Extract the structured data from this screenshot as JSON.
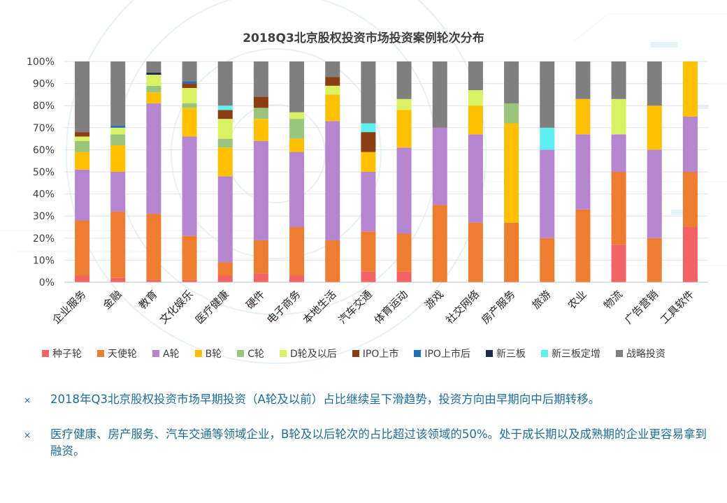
{
  "chart_data": {
    "type": "bar",
    "stacked": true,
    "title": "2018Q3北京股权投资市场投资案例轮次分布",
    "ylim": [
      0,
      100
    ],
    "ytick_labels": [
      "0%",
      "10%",
      "20%",
      "30%",
      "40%",
      "50%",
      "60%",
      "70%",
      "80%",
      "90%",
      "100%"
    ],
    "categories": [
      "企业服务",
      "金融",
      "教育",
      "文化娱乐",
      "医疗健康",
      "硬件",
      "电子商务",
      "本地生活",
      "汽车交通",
      "体育运动",
      "游戏",
      "社交网络",
      "房产服务",
      "旅游",
      "农业",
      "物流",
      "广告营销",
      "工具软件"
    ],
    "series": [
      {
        "name": "种子轮",
        "color": "#f46363",
        "values": [
          3,
          2,
          1,
          1,
          3,
          4,
          3,
          0,
          5,
          5,
          0,
          0,
          0,
          0,
          0,
          17,
          0,
          25
        ]
      },
      {
        "name": "天使轮",
        "color": "#ee7d31",
        "values": [
          25,
          30,
          30,
          20,
          6,
          15,
          22,
          19,
          18,
          17,
          35,
          27,
          27,
          20,
          33,
          33,
          20,
          25
        ]
      },
      {
        "name": "A轮",
        "color": "#b685cf",
        "values": [
          23,
          18,
          50,
          45,
          39,
          45,
          34,
          54,
          27,
          39,
          35,
          40,
          0,
          40,
          34,
          17,
          40,
          25
        ]
      },
      {
        "name": "B轮",
        "color": "#ffc000",
        "values": [
          8,
          12,
          5,
          13,
          13,
          10,
          6,
          12,
          9,
          17,
          0,
          13,
          45,
          0,
          16,
          0,
          20,
          25
        ]
      },
      {
        "name": "C轮",
        "color": "#99c57c",
        "values": [
          5,
          5,
          3,
          2,
          4,
          5,
          9,
          0,
          0,
          0,
          0,
          0,
          9,
          0,
          0,
          0,
          0,
          0
        ]
      },
      {
        "name": "D轮及以后",
        "color": "#d8f264",
        "values": [
          2,
          3,
          5,
          7,
          9,
          0,
          3,
          4,
          0,
          5,
          0,
          7,
          0,
          0,
          0,
          16,
          0,
          0
        ]
      },
      {
        "name": "IPO上市",
        "color": "#8b3e12",
        "values": [
          2,
          0,
          0,
          2,
          4,
          5,
          0,
          4,
          9,
          0,
          0,
          0,
          0,
          0,
          0,
          0,
          0,
          0
        ]
      },
      {
        "name": "IPO上市后",
        "color": "#1f72b9",
        "values": [
          0,
          1,
          0,
          1,
          0,
          0,
          0,
          0,
          0,
          0,
          0,
          0,
          0,
          0,
          0,
          0,
          0,
          0
        ]
      },
      {
        "name": "新三板",
        "color": "#1e2a52",
        "values": [
          0,
          0,
          1,
          0,
          0,
          0,
          0,
          0,
          0,
          0,
          0,
          0,
          0,
          0,
          0,
          0,
          0,
          0
        ]
      },
      {
        "name": "新三板定增",
        "color": "#5ef0f0",
        "values": [
          0,
          0,
          0,
          0,
          2,
          0,
          0,
          0,
          4,
          0,
          0,
          0,
          0,
          10,
          0,
          0,
          0,
          0
        ]
      },
      {
        "name": "战略投资",
        "color": "#7f7f7f",
        "values": [
          32,
          29,
          5,
          9,
          20,
          16,
          23,
          7,
          28,
          17,
          30,
          13,
          19,
          30,
          17,
          17,
          20,
          0
        ]
      }
    ]
  },
  "notes": [
    "2018年Q3北京股权投资市场早期投资（A轮及以前）占比继续呈下滑趋势，投资方向由早期向中后期转移。",
    "医疗健康、房产服务、汽车交通等领域企业，B轮及以后轮次的占比超过该领域的50%。处于成长期以及成熟期的企业更容易拿到融资。"
  ],
  "bullet_symbol": "×"
}
